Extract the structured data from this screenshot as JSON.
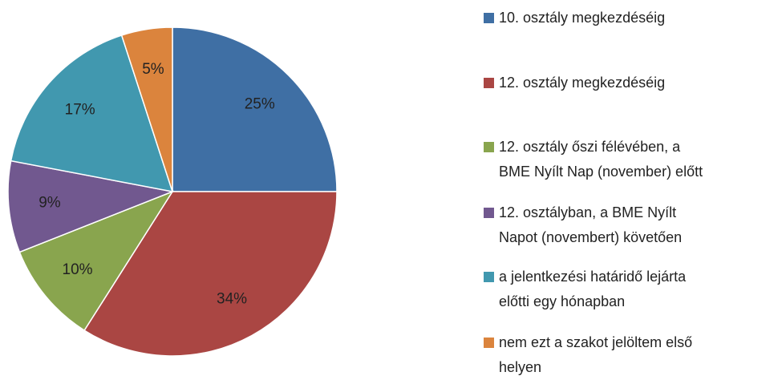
{
  "chart_data": {
    "type": "pie",
    "categories": [
      "10. osztály megkezdéséig",
      "12. osztály megkezdéséig",
      "12. osztály őszi félévében, a\nBME Nyílt Nap (november) előtt",
      "12. osztályban, a BME Nyílt\nNapot (novembert) követően",
      "a jelentkezési határidő lejárta\nelőtti egy hónapban",
      "nem ezt a szakot jelöltem első\nhelyen"
    ],
    "values": [
      25,
      34,
      10,
      9,
      17,
      5
    ],
    "value_labels": [
      "25%",
      "34%",
      "10%",
      "9%",
      "17%",
      "5%"
    ],
    "colors": [
      "#3f6fa4",
      "#aa4643",
      "#89a54e",
      "#71588f",
      "#4198af",
      "#db843d"
    ]
  }
}
